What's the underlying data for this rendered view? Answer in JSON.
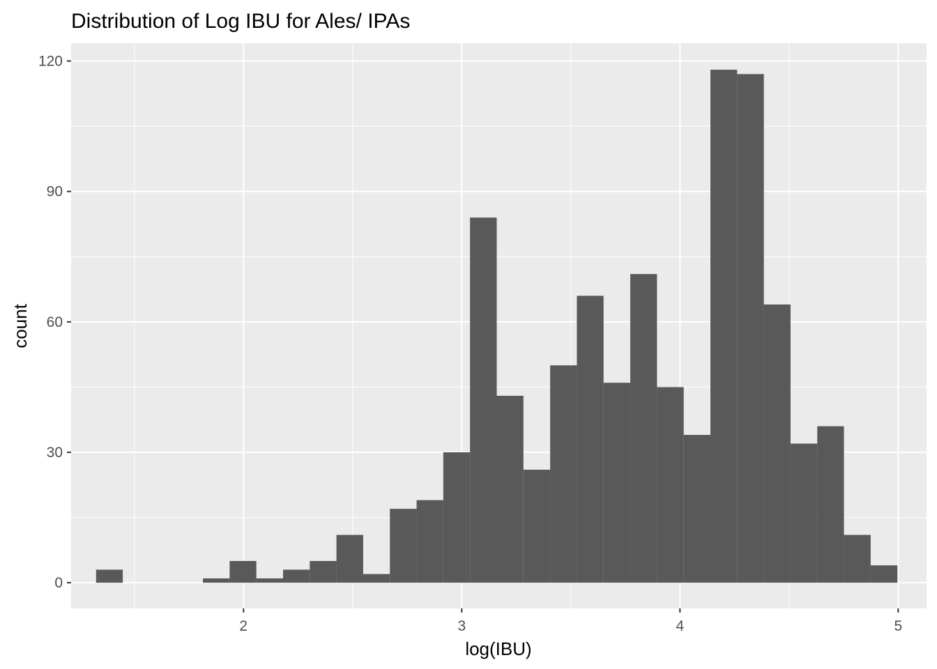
{
  "chart_data": {
    "type": "bar",
    "title": "Distribution of Log IBU for Ales/ IPAs",
    "xlabel": "log(IBU)",
    "ylabel": "count",
    "xlim": [
      1.21,
      5.13
    ],
    "ylim": [
      -5.9,
      124.1
    ],
    "x_ticks": [
      2,
      3,
      4,
      5
    ],
    "x_tick_labels": [
      "2",
      "3",
      "4",
      "5"
    ],
    "y_ticks": [
      0,
      30,
      60,
      90,
      120
    ],
    "y_tick_labels": [
      "0",
      "30",
      "60",
      "90",
      "120"
    ],
    "grid": true,
    "legend": "none",
    "bar_color": "#595959",
    "panel_background": "#ebebeb",
    "grid_color": "#ffffff",
    "bin_width": 0.1224,
    "bin_centers": [
      1.3856,
      1.508,
      1.6304,
      1.7528,
      1.8752,
      1.9976,
      2.12,
      2.2424,
      2.3648,
      2.4872,
      2.6096,
      2.732,
      2.8544,
      2.9768,
      3.0992,
      3.2216,
      3.344,
      3.4664,
      3.5888,
      3.7112,
      3.8336,
      3.956,
      4.0784,
      4.2008,
      4.3232,
      4.4456,
      4.568,
      4.6904,
      4.8128,
      4.9352
    ],
    "values": [
      3,
      0,
      0,
      0,
      1,
      5,
      1,
      3,
      5,
      11,
      2,
      17,
      19,
      30,
      84,
      43,
      26,
      50,
      66,
      46,
      71,
      45,
      34,
      118,
      117,
      64,
      32,
      36,
      11,
      4
    ]
  }
}
